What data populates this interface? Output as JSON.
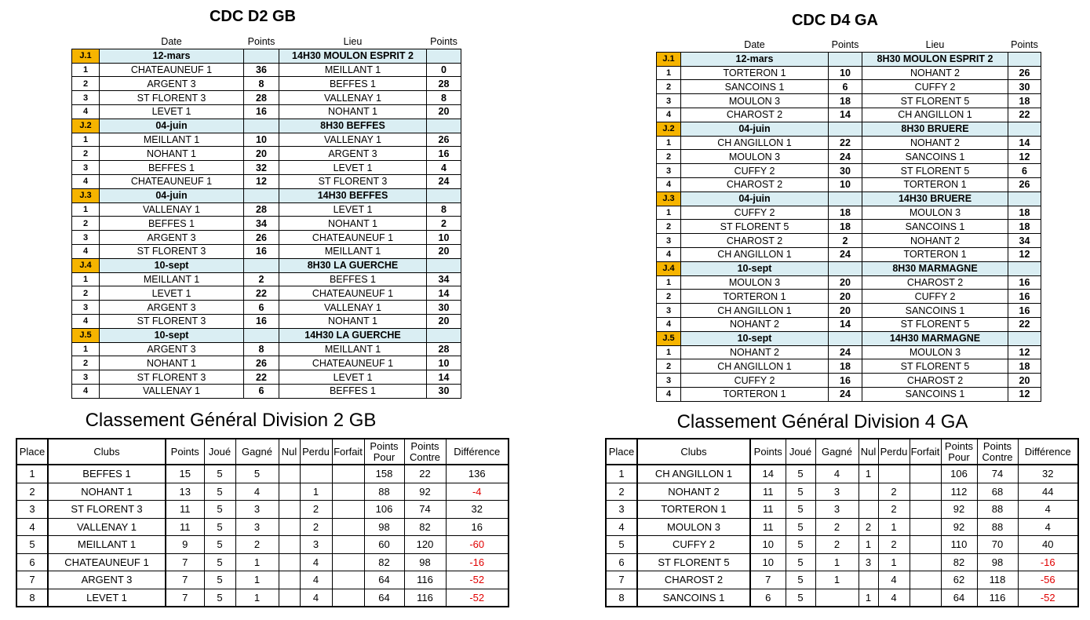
{
  "schedules": [
    {
      "title": "CDC D2 GB",
      "header": [
        "Date",
        "Points",
        "Lieu",
        "Points"
      ],
      "rounds": [
        {
          "label": "J.1",
          "date": "12-mars",
          "venue": "14H30 MOULON ESPRIT 2",
          "matches": [
            [
              1,
              "CHATEAUNEUF 1",
              36,
              "MEILLANT 1",
              0
            ],
            [
              2,
              "ARGENT 3",
              8,
              "BEFFES 1",
              28
            ],
            [
              3,
              "ST FLORENT 3",
              28,
              "VALLENAY 1",
              8
            ],
            [
              4,
              "LEVET 1",
              16,
              "NOHANT 1",
              20
            ]
          ]
        },
        {
          "label": "J.2",
          "date": "04-juin",
          "venue": "8H30 BEFFES",
          "matches": [
            [
              1,
              "MEILLANT 1",
              10,
              "VALLENAY 1",
              26
            ],
            [
              2,
              "NOHANT 1",
              20,
              "ARGENT 3",
              16
            ],
            [
              3,
              "BEFFES 1",
              32,
              "LEVET 1",
              4
            ],
            [
              4,
              "CHATEAUNEUF 1",
              12,
              "ST FLORENT 3",
              24
            ]
          ]
        },
        {
          "label": "J.3",
          "date": "04-juin",
          "venue": "14H30  BEFFES",
          "matches": [
            [
              1,
              "VALLENAY 1",
              28,
              "LEVET 1",
              8
            ],
            [
              2,
              "BEFFES 1",
              34,
              "NOHANT 1",
              2
            ],
            [
              3,
              "ARGENT 3",
              26,
              "CHATEAUNEUF 1",
              10
            ],
            [
              4,
              "ST FLORENT 3",
              16,
              "MEILLANT 1",
              20
            ]
          ]
        },
        {
          "label": "J.4",
          "date": "10-sept",
          "venue": "8H30  LA GUERCHE",
          "matches": [
            [
              1,
              "MEILLANT 1",
              2,
              "BEFFES 1",
              34
            ],
            [
              2,
              "LEVET 1",
              22,
              "CHATEAUNEUF 1",
              14
            ],
            [
              3,
              "ARGENT 3",
              6,
              "VALLENAY 1",
              30
            ],
            [
              4,
              "ST FLORENT 3",
              16,
              "NOHANT 1",
              20
            ]
          ]
        },
        {
          "label": "J.5",
          "date": "10-sept",
          "venue": "14H30 LA GUERCHE",
          "matches": [
            [
              1,
              "ARGENT 3",
              8,
              "MEILLANT 1",
              28
            ],
            [
              2,
              "NOHANT 1",
              26,
              "CHATEAUNEUF 1",
              10
            ],
            [
              3,
              "ST FLORENT 3",
              22,
              "LEVET 1",
              14
            ],
            [
              4,
              "VALLENAY 1",
              6,
              "BEFFES 1",
              30
            ]
          ]
        }
      ]
    },
    {
      "title": "CDC D4 GA",
      "header": [
        "Date",
        "Points",
        "Lieu",
        "Points"
      ],
      "rounds": [
        {
          "label": "J.1",
          "date": "12-mars",
          "venue": "8H30 MOULON ESPRIT 2",
          "matches": [
            [
              1,
              "TORTERON 1",
              10,
              "NOHANT 2",
              26
            ],
            [
              2,
              "SANCOINS 1",
              6,
              "CUFFY 2",
              30
            ],
            [
              3,
              "MOULON 3",
              18,
              "ST FLORENT 5",
              18
            ],
            [
              4,
              "CHAROST 2",
              14,
              "CH ANGILLON 1",
              22
            ]
          ]
        },
        {
          "label": "J.2",
          "date": "04-juin",
          "venue": "8H30 BRUERE",
          "matches": [
            [
              1,
              "CH ANGILLON 1",
              22,
              "NOHANT 2",
              14
            ],
            [
              2,
              "MOULON 3",
              24,
              "SANCOINS 1",
              12
            ],
            [
              3,
              "CUFFY 2",
              30,
              "ST FLORENT 5",
              6
            ],
            [
              4,
              "CHAROST 2",
              10,
              "TORTERON 1",
              26
            ]
          ]
        },
        {
          "label": "J.3",
          "date": "04-juin",
          "venue": "14H30 BRUERE",
          "matches": [
            [
              1,
              "CUFFY 2",
              18,
              "MOULON 3",
              18
            ],
            [
              2,
              "ST FLORENT 5",
              18,
              "SANCOINS 1",
              18
            ],
            [
              3,
              "CHAROST 2",
              2,
              "NOHANT 2",
              34
            ],
            [
              4,
              "CH ANGILLON 1",
              24,
              "TORTERON 1",
              12
            ]
          ]
        },
        {
          "label": "J.4",
          "date": "10-sept",
          "venue": "8H30 MARMAGNE",
          "matches": [
            [
              1,
              "MOULON 3",
              20,
              "CHAROST 2",
              16
            ],
            [
              2,
              "TORTERON 1",
              20,
              "CUFFY 2",
              16
            ],
            [
              3,
              "CH ANGILLON 1",
              20,
              "SANCOINS 1",
              16
            ],
            [
              4,
              "NOHANT 2",
              14,
              "ST FLORENT 5",
              22
            ]
          ]
        },
        {
          "label": "J.5",
          "date": "10-sept",
          "venue": "14H30 MARMAGNE",
          "matches": [
            [
              1,
              "NOHANT 2",
              24,
              "MOULON 3",
              12
            ],
            [
              2,
              "CH ANGILLON 1",
              18,
              "ST FLORENT 5",
              18
            ],
            [
              3,
              "CUFFY 2",
              16,
              "CHAROST 2",
              20
            ],
            [
              4,
              "TORTERON 1",
              24,
              "SANCOINS 1",
              12
            ]
          ]
        }
      ]
    }
  ],
  "standings": [
    {
      "title": "Classement Général Division 2 GB",
      "header": [
        "Place",
        "Clubs",
        "Points",
        "Joué",
        "Gagné",
        "Nul",
        "Perdu",
        "Forfait",
        "Points Pour",
        "Points Contre",
        "Différence"
      ],
      "rows": [
        [
          1,
          "BEFFES 1",
          15,
          5,
          5,
          null,
          null,
          null,
          158,
          22,
          136
        ],
        [
          2,
          "NOHANT 1",
          13,
          5,
          4,
          null,
          1,
          null,
          88,
          92,
          -4
        ],
        [
          3,
          "ST FLORENT 3",
          11,
          5,
          3,
          null,
          2,
          null,
          106,
          74,
          32
        ],
        [
          4,
          "VALLENAY 1",
          11,
          5,
          3,
          null,
          2,
          null,
          98,
          82,
          16
        ],
        [
          5,
          "MEILLANT 1",
          9,
          5,
          2,
          null,
          3,
          null,
          60,
          120,
          -60
        ],
        [
          6,
          "CHATEAUNEUF 1",
          7,
          5,
          1,
          null,
          4,
          null,
          82,
          98,
          -16
        ],
        [
          7,
          "ARGENT 3",
          7,
          5,
          1,
          null,
          4,
          null,
          64,
          116,
          -52
        ],
        [
          8,
          "LEVET 1",
          7,
          5,
          1,
          null,
          4,
          null,
          64,
          116,
          -52
        ]
      ]
    },
    {
      "title": "Classement Général Division 4 GA",
      "header": [
        "Place",
        "Clubs",
        "Points",
        "Joué",
        "Gagné",
        "Nul",
        "Perdu",
        "Forfait",
        "Points Pour",
        "Points Contre",
        "Différence"
      ],
      "rows": [
        [
          1,
          "CH ANGILLON 1",
          14,
          5,
          4,
          1,
          null,
          null,
          106,
          74,
          32
        ],
        [
          2,
          "NOHANT 2",
          11,
          5,
          3,
          null,
          2,
          null,
          112,
          68,
          44
        ],
        [
          3,
          "TORTERON 1",
          11,
          5,
          3,
          null,
          2,
          null,
          92,
          88,
          4
        ],
        [
          4,
          "MOULON 3",
          11,
          5,
          2,
          2,
          1,
          null,
          92,
          88,
          4
        ],
        [
          5,
          "CUFFY 2",
          10,
          5,
          2,
          1,
          2,
          null,
          110,
          70,
          40
        ],
        [
          6,
          "ST FLORENT 5",
          10,
          5,
          1,
          3,
          1,
          null,
          82,
          98,
          -16
        ],
        [
          7,
          "CHAROST 2",
          7,
          5,
          1,
          null,
          4,
          null,
          62,
          118,
          -56
        ],
        [
          8,
          "SANCOINS 1",
          6,
          5,
          null,
          1,
          4,
          null,
          64,
          116,
          -52
        ]
      ]
    }
  ]
}
